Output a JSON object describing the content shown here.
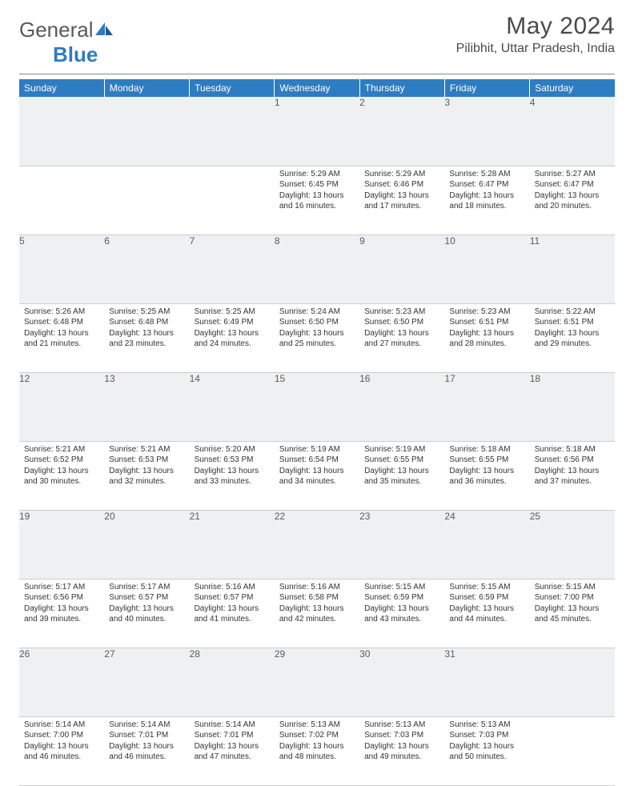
{
  "logo": {
    "general": "General",
    "blue": "Blue"
  },
  "title": "May 2024",
  "location": "Pilibhit, Uttar Pradesh, India",
  "day_headers": [
    "Sunday",
    "Monday",
    "Tuesday",
    "Wednesday",
    "Thursday",
    "Friday",
    "Saturday"
  ],
  "colors": {
    "header_bg": "#2e7cc2",
    "header_fg": "#ffffff",
    "daynum_bg": "#eef0f2",
    "body_text": "#333333"
  },
  "weeks": [
    {
      "nums": [
        "",
        "",
        "",
        "1",
        "2",
        "3",
        "4"
      ],
      "cells": [
        null,
        null,
        null,
        {
          "sunrise": "5:29 AM",
          "sunset": "6:45 PM",
          "daylight": "13 hours and 16 minutes."
        },
        {
          "sunrise": "5:29 AM",
          "sunset": "6:46 PM",
          "daylight": "13 hours and 17 minutes."
        },
        {
          "sunrise": "5:28 AM",
          "sunset": "6:47 PM",
          "daylight": "13 hours and 18 minutes."
        },
        {
          "sunrise": "5:27 AM",
          "sunset": "6:47 PM",
          "daylight": "13 hours and 20 minutes."
        }
      ]
    },
    {
      "nums": [
        "5",
        "6",
        "7",
        "8",
        "9",
        "10",
        "11"
      ],
      "cells": [
        {
          "sunrise": "5:26 AM",
          "sunset": "6:48 PM",
          "daylight": "13 hours and 21 minutes."
        },
        {
          "sunrise": "5:25 AM",
          "sunset": "6:48 PM",
          "daylight": "13 hours and 23 minutes."
        },
        {
          "sunrise": "5:25 AM",
          "sunset": "6:49 PM",
          "daylight": "13 hours and 24 minutes."
        },
        {
          "sunrise": "5:24 AM",
          "sunset": "6:50 PM",
          "daylight": "13 hours and 25 minutes."
        },
        {
          "sunrise": "5:23 AM",
          "sunset": "6:50 PM",
          "daylight": "13 hours and 27 minutes."
        },
        {
          "sunrise": "5:23 AM",
          "sunset": "6:51 PM",
          "daylight": "13 hours and 28 minutes."
        },
        {
          "sunrise": "5:22 AM",
          "sunset": "6:51 PM",
          "daylight": "13 hours and 29 minutes."
        }
      ]
    },
    {
      "nums": [
        "12",
        "13",
        "14",
        "15",
        "16",
        "17",
        "18"
      ],
      "cells": [
        {
          "sunrise": "5:21 AM",
          "sunset": "6:52 PM",
          "daylight": "13 hours and 30 minutes."
        },
        {
          "sunrise": "5:21 AM",
          "sunset": "6:53 PM",
          "daylight": "13 hours and 32 minutes."
        },
        {
          "sunrise": "5:20 AM",
          "sunset": "6:53 PM",
          "daylight": "13 hours and 33 minutes."
        },
        {
          "sunrise": "5:19 AM",
          "sunset": "6:54 PM",
          "daylight": "13 hours and 34 minutes."
        },
        {
          "sunrise": "5:19 AM",
          "sunset": "6:55 PM",
          "daylight": "13 hours and 35 minutes."
        },
        {
          "sunrise": "5:18 AM",
          "sunset": "6:55 PM",
          "daylight": "13 hours and 36 minutes."
        },
        {
          "sunrise": "5:18 AM",
          "sunset": "6:56 PM",
          "daylight": "13 hours and 37 minutes."
        }
      ]
    },
    {
      "nums": [
        "19",
        "20",
        "21",
        "22",
        "23",
        "24",
        "25"
      ],
      "cells": [
        {
          "sunrise": "5:17 AM",
          "sunset": "6:56 PM",
          "daylight": "13 hours and 39 minutes."
        },
        {
          "sunrise": "5:17 AM",
          "sunset": "6:57 PM",
          "daylight": "13 hours and 40 minutes."
        },
        {
          "sunrise": "5:16 AM",
          "sunset": "6:57 PM",
          "daylight": "13 hours and 41 minutes."
        },
        {
          "sunrise": "5:16 AM",
          "sunset": "6:58 PM",
          "daylight": "13 hours and 42 minutes."
        },
        {
          "sunrise": "5:15 AM",
          "sunset": "6:59 PM",
          "daylight": "13 hours and 43 minutes."
        },
        {
          "sunrise": "5:15 AM",
          "sunset": "6:59 PM",
          "daylight": "13 hours and 44 minutes."
        },
        {
          "sunrise": "5:15 AM",
          "sunset": "7:00 PM",
          "daylight": "13 hours and 45 minutes."
        }
      ]
    },
    {
      "nums": [
        "26",
        "27",
        "28",
        "29",
        "30",
        "31",
        ""
      ],
      "cells": [
        {
          "sunrise": "5:14 AM",
          "sunset": "7:00 PM",
          "daylight": "13 hours and 46 minutes."
        },
        {
          "sunrise": "5:14 AM",
          "sunset": "7:01 PM",
          "daylight": "13 hours and 46 minutes."
        },
        {
          "sunrise": "5:14 AM",
          "sunset": "7:01 PM",
          "daylight": "13 hours and 47 minutes."
        },
        {
          "sunrise": "5:13 AM",
          "sunset": "7:02 PM",
          "daylight": "13 hours and 48 minutes."
        },
        {
          "sunrise": "5:13 AM",
          "sunset": "7:03 PM",
          "daylight": "13 hours and 49 minutes."
        },
        {
          "sunrise": "5:13 AM",
          "sunset": "7:03 PM",
          "daylight": "13 hours and 50 minutes."
        },
        null
      ]
    }
  ],
  "labels": {
    "sunrise": "Sunrise: ",
    "sunset": "Sunset: ",
    "daylight": "Daylight: "
  }
}
